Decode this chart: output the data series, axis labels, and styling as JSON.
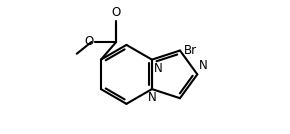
{
  "bg_color": "#ffffff",
  "line_color": "#000000",
  "bond_width": 1.5,
  "font_size": 8.5,
  "fig_width": 2.9,
  "fig_height": 1.34,
  "xlim": [
    -3.8,
    3.2
  ],
  "ylim": [
    -2.0,
    2.5
  ]
}
